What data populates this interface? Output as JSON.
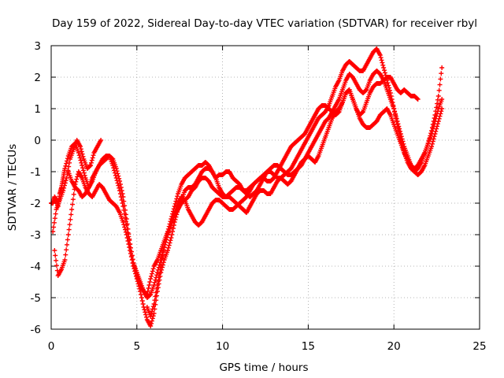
{
  "chart_data": {
    "type": "scatter",
    "title": "Day 159 of 2022, Sidereal Day-to-day VTEC variation (SDTVAR) for receiver rbyl",
    "xlabel": "GPS time / hours",
    "ylabel": "SDTVAR / TECUs",
    "xlim": [
      0,
      25
    ],
    "ylim": [
      -6,
      3
    ],
    "xticks": [
      "0",
      "5",
      "10",
      "15",
      "20",
      "25"
    ],
    "yticks": [
      "-6",
      "-5",
      "-4",
      "-3",
      "-2",
      "-1",
      "0",
      "1",
      "2",
      "3"
    ],
    "grid": true,
    "marker": "+",
    "color": "#ff0000",
    "series": [
      {
        "x": [
          0.0,
          0.1,
          0.2,
          0.3,
          0.4,
          0.5,
          0.6,
          0.7,
          0.8,
          1.0,
          1.2,
          1.4,
          1.6,
          1.8,
          2.0,
          2.2,
          2.4,
          2.6,
          2.8,
          3.0,
          3.2,
          3.4,
          3.6,
          3.8,
          4.0,
          4.2,
          4.4,
          4.6,
          4.8,
          5.0,
          5.2,
          5.4,
          5.6,
          5.8,
          6.0,
          6.2,
          6.4,
          6.6,
          6.8,
          7.0,
          7.2,
          7.4,
          7.6,
          7.8,
          8.0,
          8.2,
          8.4,
          8.6,
          8.8,
          9.0,
          9.2,
          9.4,
          9.6,
          9.8,
          10.0,
          10.2,
          10.4,
          10.6,
          10.8,
          11.0,
          11.2,
          11.4,
          11.6,
          11.8,
          12.0,
          12.2,
          12.4,
          12.6,
          12.8,
          13.0,
          13.2,
          13.4,
          13.6,
          13.8,
          14.0,
          14.2,
          14.4,
          14.6,
          14.8,
          15.0,
          15.2,
          15.4,
          15.6,
          15.8,
          16.0,
          16.2,
          16.4,
          16.6,
          16.8,
          17.0,
          17.2,
          17.4,
          17.6,
          17.8,
          18.0,
          18.2,
          18.4,
          18.6,
          18.8,
          19.0,
          19.2,
          19.4,
          19.6,
          19.8,
          20.0,
          20.2,
          20.4,
          20.6,
          20.8,
          21.0,
          21.2,
          21.4,
          21.6,
          21.8,
          22.0,
          22.2,
          22.4,
          22.6,
          22.8
        ],
        "y": [
          -2.0,
          -2.0,
          -1.8,
          -1.9,
          -2.1,
          -1.7,
          -1.5,
          -1.2,
          -0.9,
          -0.5,
          -0.2,
          -0.1,
          -0.4,
          -0.8,
          -1.2,
          -1.5,
          -1.2,
          -1.0,
          -0.8,
          -0.7,
          -0.6,
          -0.5,
          -0.6,
          -0.9,
          -1.3,
          -1.8,
          -2.5,
          -3.3,
          -3.9,
          -4.2,
          -4.5,
          -4.8,
          -4.9,
          -4.4,
          -4.0,
          -3.8,
          -3.5,
          -3.2,
          -2.9,
          -2.5,
          -2.1,
          -1.7,
          -1.4,
          -1.2,
          -1.1,
          -1.0,
          -0.9,
          -0.8,
          -0.8,
          -0.7,
          -0.8,
          -1.0,
          -1.2,
          -1.1,
          -1.1,
          -1.0,
          -1.0,
          -1.2,
          -1.3,
          -1.4,
          -1.6,
          -1.7,
          -1.8,
          -1.7,
          -1.6,
          -1.4,
          -1.2,
          -1.0,
          -1.0,
          -1.1,
          -1.2,
          -1.2,
          -1.1,
          -1.0,
          -0.9,
          -0.7,
          -0.5,
          -0.3,
          -0.1,
          0.1,
          0.3,
          0.5,
          0.7,
          0.8,
          0.9,
          1.1,
          1.4,
          1.7,
          1.9,
          2.2,
          2.4,
          2.5,
          2.4,
          2.3,
          2.2,
          2.2,
          2.4,
          2.6,
          2.8,
          2.9,
          2.7,
          2.3,
          1.9,
          1.5,
          1.0,
          0.5,
          0.0,
          -0.4,
          -0.7,
          -0.9,
          -1.0,
          -0.9,
          -0.7,
          -0.4,
          -0.1,
          0.3,
          0.8,
          1.4,
          2.3
        ]
      },
      {
        "x": [
          0.2,
          0.4,
          0.6,
          0.8,
          1.0,
          1.2,
          1.4,
          1.6,
          1.8,
          2.0,
          2.2,
          2.4,
          2.6,
          2.8,
          3.0,
          3.2,
          3.4,
          3.6,
          3.8,
          4.0,
          4.2,
          4.4,
          4.6,
          4.8,
          5.0,
          5.2,
          5.4,
          5.6,
          5.8,
          6.0,
          6.2,
          6.4,
          6.6,
          6.8,
          7.0,
          7.2,
          7.4,
          7.6,
          7.8,
          8.0,
          8.2,
          8.4,
          8.6,
          8.8,
          9.0,
          9.2,
          9.4,
          9.6,
          9.8,
          10.0,
          10.2,
          10.4,
          10.6,
          10.8,
          11.0,
          11.2,
          11.4,
          11.6,
          11.8,
          12.0,
          12.2,
          12.4,
          12.6,
          12.8,
          13.0,
          13.2,
          13.4,
          13.6,
          13.8,
          14.0,
          14.2,
          14.4,
          14.6,
          14.8,
          15.0,
          15.2,
          15.4,
          15.6,
          15.8,
          16.0,
          16.2,
          16.4,
          16.6,
          16.8,
          17.0,
          17.2,
          17.4,
          17.6,
          17.8,
          18.0,
          18.2,
          18.4,
          18.6,
          18.8,
          19.0,
          19.2,
          19.4,
          19.6,
          19.8,
          20.0,
          20.2,
          20.4,
          20.6,
          20.8,
          21.0,
          21.2,
          21.4
        ],
        "y": [
          -3.5,
          -4.3,
          -4.1,
          -3.8,
          -3.0,
          -2.2,
          -1.4,
          -1.0,
          -1.2,
          -1.5,
          -1.7,
          -1.8,
          -1.6,
          -1.4,
          -1.5,
          -1.7,
          -1.9,
          -2.0,
          -2.1,
          -2.3,
          -2.6,
          -3.0,
          -3.5,
          -4.0,
          -4.4,
          -4.8,
          -5.3,
          -5.7,
          -5.9,
          -5.5,
          -4.8,
          -4.2,
          -3.8,
          -3.5,
          -3.1,
          -2.6,
          -2.2,
          -1.9,
          -1.6,
          -1.5,
          -1.5,
          -1.4,
          -1.2,
          -1.0,
          -0.9,
          -0.9,
          -1.0,
          -1.2,
          -1.5,
          -1.7,
          -1.8,
          -1.8,
          -1.9,
          -2.0,
          -2.1,
          -2.2,
          -2.3,
          -2.1,
          -1.9,
          -1.7,
          -1.6,
          -1.6,
          -1.7,
          -1.7,
          -1.5,
          -1.3,
          -1.2,
          -1.3,
          -1.4,
          -1.3,
          -1.1,
          -0.9,
          -0.7,
          -0.6,
          -0.5,
          -0.6,
          -0.7,
          -0.5,
          -0.2,
          0.1,
          0.4,
          0.7,
          0.9,
          1.0,
          1.2,
          1.5,
          1.6,
          1.3,
          1.0,
          0.8,
          0.9,
          1.2,
          1.5,
          1.7,
          1.8,
          1.8,
          1.9,
          2.0,
          2.0,
          1.8,
          1.6,
          1.5,
          1.6,
          1.5,
          1.4,
          1.4,
          1.3
        ]
      },
      {
        "x": [
          1.0,
          1.2,
          1.4,
          1.6,
          1.8,
          2.0,
          2.2,
          2.4,
          2.6,
          2.8,
          3.0,
          3.2,
          3.4,
          3.6,
          3.8,
          4.0,
          4.2,
          4.4,
          4.6,
          4.8,
          5.0,
          5.2,
          5.4,
          5.6,
          5.8,
          6.0,
          6.2,
          6.4,
          6.6,
          6.8,
          7.0,
          7.2,
          7.4,
          7.6,
          7.8,
          8.0,
          8.2,
          8.4,
          8.6,
          8.8,
          9.0,
          9.2,
          9.4,
          9.6,
          9.8,
          10.0,
          10.2,
          10.4,
          10.6,
          10.8,
          11.0,
          11.2,
          11.4,
          11.6,
          11.8,
          12.0,
          12.2,
          12.4,
          12.6,
          12.8,
          13.0,
          13.2,
          13.4,
          13.6,
          13.8,
          14.0,
          14.2,
          14.4,
          14.6,
          14.8,
          15.0,
          15.2,
          15.4,
          15.6,
          15.8,
          16.0,
          16.2,
          16.4,
          16.6,
          16.8,
          17.0,
          17.2,
          17.4,
          17.6,
          17.8,
          18.0,
          18.2,
          18.4,
          18.6,
          18.8,
          19.0,
          19.2,
          19.4,
          19.6,
          19.8,
          20.0,
          20.2,
          20.4,
          20.6,
          20.8,
          21.0,
          21.2,
          21.4,
          21.6,
          21.8,
          22.0,
          22.2,
          22.4,
          22.6,
          22.8
        ],
        "y": [
          -1.0,
          -1.3,
          -1.5,
          -1.6,
          -1.8,
          -1.7,
          -1.5,
          -1.3,
          -1.0,
          -0.8,
          -0.6,
          -0.5,
          -0.5,
          -0.8,
          -1.2,
          -1.6,
          -2.1,
          -2.7,
          -3.3,
          -3.9,
          -4.3,
          -4.6,
          -4.8,
          -5.0,
          -4.9,
          -4.6,
          -4.2,
          -3.8,
          -3.4,
          -3.0,
          -2.7,
          -2.4,
          -2.2,
          -2.0,
          -1.9,
          -1.8,
          -1.6,
          -1.5,
          -1.3,
          -1.2,
          -1.2,
          -1.3,
          -1.5,
          -1.6,
          -1.7,
          -1.8,
          -1.8,
          -1.7,
          -1.6,
          -1.5,
          -1.5,
          -1.6,
          -1.6,
          -1.5,
          -1.4,
          -1.3,
          -1.2,
          -1.1,
          -1.0,
          -0.9,
          -0.8,
          -0.8,
          -0.9,
          -1.0,
          -1.1,
          -1.1,
          -1.0,
          -0.9,
          -0.8,
          -0.6,
          -0.4,
          -0.2,
          0.0,
          0.2,
          0.4,
          0.6,
          0.7,
          0.9,
          1.1,
          1.3,
          1.6,
          1.9,
          2.1,
          2.0,
          1.8,
          1.6,
          1.5,
          1.6,
          1.9,
          2.1,
          2.2,
          2.1,
          1.9,
          1.6,
          1.3,
          1.0,
          0.6,
          0.2,
          -0.2,
          -0.5,
          -0.8,
          -1.0,
          -1.1,
          -1.0,
          -0.8,
          -0.5,
          -0.2,
          0.2,
          0.6,
          1.0
        ]
      },
      {
        "x": [
          5.6,
          5.8,
          6.0,
          6.2,
          6.4,
          6.6,
          6.8,
          7.0,
          7.2,
          7.4,
          7.6,
          7.8,
          8.0,
          8.2,
          8.4,
          8.6,
          8.8,
          9.0,
          9.2,
          9.4,
          9.6,
          9.8,
          10.0,
          10.2,
          10.4,
          10.6,
          10.8,
          11.0,
          11.2,
          11.4,
          11.6,
          11.8,
          12.0,
          12.2,
          12.4,
          12.6,
          12.8,
          13.0,
          13.2,
          13.4,
          13.6,
          13.8,
          14.0,
          14.2,
          14.4,
          14.6,
          14.8,
          15.0,
          15.2,
          15.4,
          15.6,
          15.8,
          16.0,
          16.2,
          16.4,
          16.6,
          16.8,
          17.0,
          17.2,
          17.4,
          17.6,
          17.8,
          18.0,
          18.2,
          18.4,
          18.6,
          18.8,
          19.0,
          19.2,
          19.4,
          19.6,
          19.8,
          20.0,
          20.2,
          20.4,
          20.6,
          20.8,
          21.0,
          21.2,
          21.4,
          21.6,
          21.8,
          22.0,
          22.2,
          22.4,
          22.6,
          22.8
        ],
        "y": [
          -5.3,
          -5.6,
          -5.2,
          -4.6,
          -4.0,
          -3.4,
          -3.0,
          -2.7,
          -2.3,
          -2.0,
          -1.8,
          -1.9,
          -2.2,
          -2.4,
          -2.6,
          -2.7,
          -2.6,
          -2.4,
          -2.2,
          -2.0,
          -1.9,
          -1.9,
          -2.0,
          -2.1,
          -2.2,
          -2.2,
          -2.1,
          -2.0,
          -1.9,
          -1.8,
          -1.6,
          -1.4,
          -1.3,
          -1.2,
          -1.2,
          -1.3,
          -1.3,
          -1.2,
          -1.0,
          -0.8,
          -0.6,
          -0.4,
          -0.2,
          -0.1,
          0.0,
          0.1,
          0.2,
          0.4,
          0.6,
          0.8,
          1.0,
          1.1,
          1.1,
          1.0,
          0.9,
          0.8,
          0.9,
          1.2,
          1.5,
          1.6,
          1.3,
          1.0,
          0.7,
          0.5,
          0.4,
          0.4,
          0.5,
          0.6,
          0.8,
          0.9,
          1.0,
          0.8,
          0.5,
          0.2,
          -0.1,
          -0.4,
          -0.6,
          -0.8,
          -0.9,
          -0.8,
          -0.6,
          -0.4,
          -0.1,
          0.2,
          0.6,
          1.0,
          1.3
        ]
      },
      {
        "x": [
          0.1,
          0.3,
          0.5,
          0.7,
          0.9,
          1.1,
          1.3,
          1.5,
          1.7,
          1.9,
          2.1,
          2.3,
          2.5,
          2.7,
          2.9
        ],
        "y": [
          -2.9,
          -2.2,
          -1.9,
          -1.6,
          -1.2,
          -0.6,
          -0.3,
          0.0,
          -0.2,
          -0.6,
          -0.9,
          -0.8,
          -0.4,
          -0.2,
          0.0
        ]
      }
    ]
  }
}
